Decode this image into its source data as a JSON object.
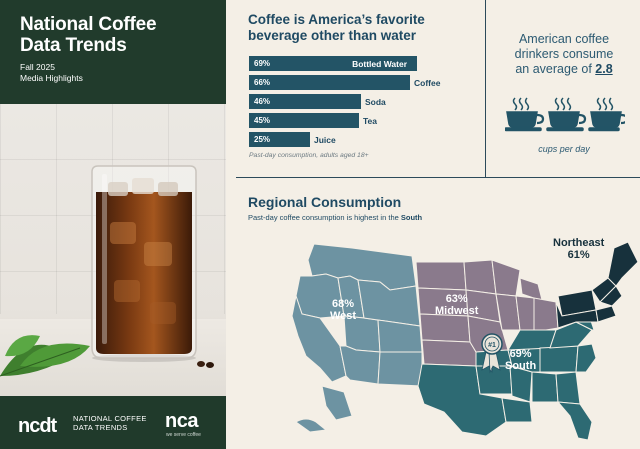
{
  "header": {
    "title_line1": "National Coffee",
    "title_line2": "Data Trends",
    "subtitle_line1": "Fall 2025",
    "subtitle_line2": "Media Highlights"
  },
  "footer": {
    "logo_mark": "ncdt",
    "logo_text_line1": "NATIONAL COFFEE",
    "logo_text_line2": "DATA TRENDS",
    "nca_mark": "nca",
    "nca_tagline": "we serve coffee"
  },
  "favorite": {
    "title_line1": "Coffee is America’s favorite",
    "title_line2": "beverage other than water",
    "note": "Past-day consumption, adults aged 18+",
    "bars": [
      {
        "label": "Bottled Water",
        "pct": "69%",
        "value": 69
      },
      {
        "label": "Coffee",
        "pct": "66%",
        "value": 66
      },
      {
        "label": "Soda",
        "pct": "46%",
        "value": 46
      },
      {
        "label": "Tea",
        "pct": "45%",
        "value": 45
      },
      {
        "label": "Juice",
        "pct": "25%",
        "value": 25
      }
    ]
  },
  "cups": {
    "line1": "American coffee",
    "line2": "drinkers consume",
    "line3_prefix": "an average of ",
    "value": "2.8",
    "note": "cups per day"
  },
  "regional": {
    "title": "Regional Consumption",
    "subtitle_prefix": "Past-day coffee consumption is highest in the ",
    "subtitle_highlight": "South",
    "badge": "#1",
    "regions": [
      {
        "name": "West",
        "pct": "68%"
      },
      {
        "name": "Midwest",
        "pct": "63%"
      },
      {
        "name": "South",
        "pct": "69%"
      },
      {
        "name": "Northeast",
        "pct": "61%"
      }
    ]
  },
  "colors": {
    "dark_green": "#213b2c",
    "navy_teal": "#235466",
    "west": "#6d93a2",
    "midwest": "#8a7a8c",
    "south": "#2d6a73",
    "northeast": "#17313c"
  }
}
